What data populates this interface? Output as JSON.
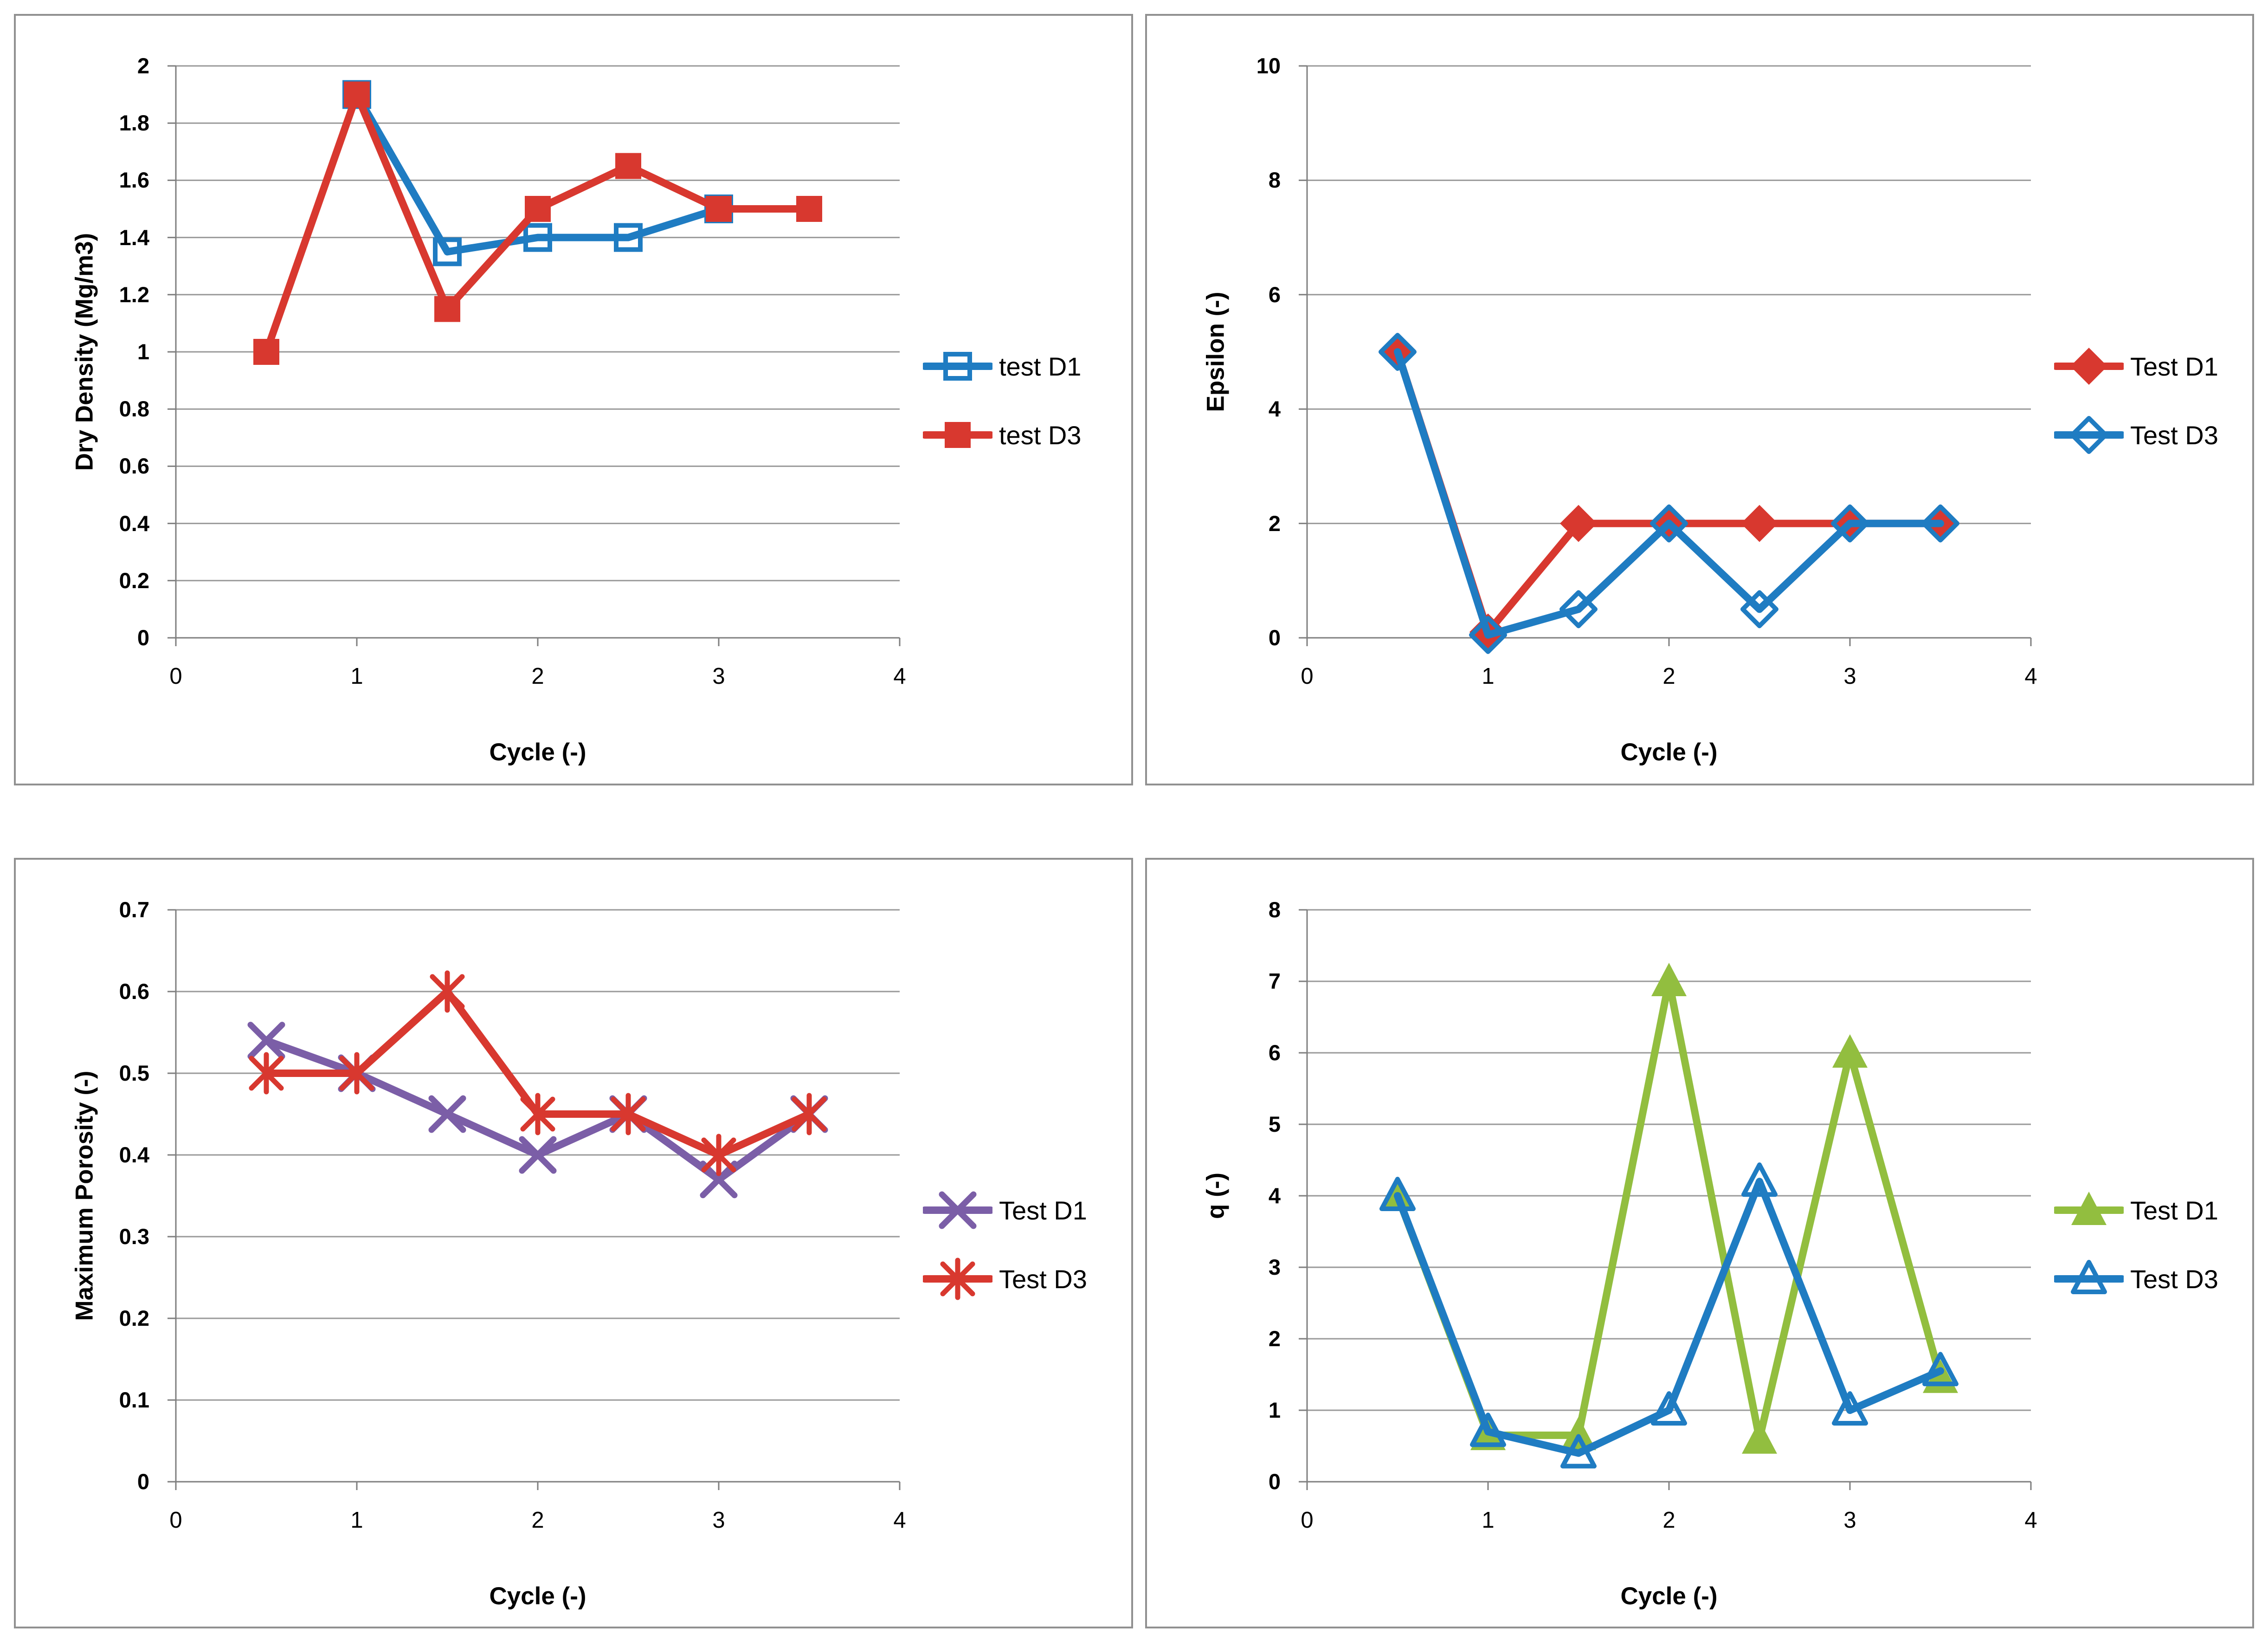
{
  "page": {
    "background": "#ffffff",
    "panel_border_color": "#909090",
    "gridline_color": "#9a9a9a"
  },
  "chart_data": [
    {
      "id": "dry-density",
      "type": "line",
      "title": "",
      "xlabel": "Cycle (-)",
      "ylabel": "Dry Density (Mg/m3)",
      "xlim": [
        0,
        4
      ],
      "ylim": [
        0,
        2
      ],
      "xtick_values": [
        0,
        1,
        2,
        3,
        4
      ],
      "xtick_labels": [
        "0",
        "1",
        "2",
        "3",
        "4"
      ],
      "ytick_values": [
        0,
        0.2,
        0.4,
        0.6,
        0.8,
        1,
        1.2,
        1.4,
        1.6,
        1.8,
        2
      ],
      "ytick_labels": [
        "0",
        "0.2",
        "0.4",
        "0.6",
        "0.8",
        "1",
        "1.2",
        "1.4",
        "1.6",
        "1.8",
        "2"
      ],
      "grid": "horizontal",
      "legend_position": "right",
      "series": [
        {
          "name": "test D1",
          "color": "#1f7cc2",
          "marker": "square-open",
          "x": [
            1,
            1.5,
            2,
            2.5,
            3
          ],
          "y": [
            1.9,
            1.35,
            1.4,
            1.4,
            1.5
          ]
        },
        {
          "name": "test D3",
          "color": "#d8382f",
          "marker": "square-filled",
          "x": [
            0.5,
            1,
            1.5,
            2,
            2.5,
            3,
            3.5
          ],
          "y": [
            1.0,
            1.9,
            1.15,
            1.5,
            1.65,
            1.5,
            1.5
          ]
        }
      ]
    },
    {
      "id": "epsilon",
      "type": "line",
      "title": "",
      "xlabel": "Cycle (-)",
      "ylabel": "Epsilon (-)",
      "xlim": [
        0,
        4
      ],
      "ylim": [
        0,
        10
      ],
      "xtick_values": [
        0,
        1,
        2,
        3,
        4
      ],
      "xtick_labels": [
        "0",
        "1",
        "2",
        "3",
        "4"
      ],
      "ytick_values": [
        0,
        2,
        4,
        6,
        8,
        10
      ],
      "ytick_labels": [
        "0",
        "2",
        "4",
        "6",
        "8",
        "10"
      ],
      "grid": "horizontal",
      "legend_position": "right",
      "series": [
        {
          "name": "Test D1",
          "color": "#d8382f",
          "marker": "diamond-filled",
          "x": [
            0.5,
            1,
            1.5,
            2,
            2.5,
            3,
            3.5
          ],
          "y": [
            5,
            0.1,
            2,
            2,
            2,
            2,
            2
          ]
        },
        {
          "name": "Test D3",
          "color": "#1f7cc2",
          "marker": "diamond-open",
          "x": [
            0.5,
            1,
            1.5,
            2,
            2.5,
            3,
            3.5
          ],
          "y": [
            5,
            0.05,
            0.5,
            2,
            0.5,
            2,
            2
          ]
        }
      ]
    },
    {
      "id": "maximum-porosity",
      "type": "line",
      "title": "",
      "xlabel": "Cycle (-)",
      "ylabel": "Maximum Porosity (-)",
      "xlim": [
        0,
        4
      ],
      "ylim": [
        0,
        0.7
      ],
      "xtick_values": [
        0,
        1,
        2,
        3,
        4
      ],
      "xtick_labels": [
        "0",
        "1",
        "2",
        "3",
        "4"
      ],
      "ytick_values": [
        0,
        0.1,
        0.2,
        0.3,
        0.4,
        0.5,
        0.6,
        0.7
      ],
      "ytick_labels": [
        "0",
        "0.1",
        "0.2",
        "0.3",
        "0.4",
        "0.5",
        "0.6",
        "0.7"
      ],
      "grid": "horizontal",
      "legend_position": "right",
      "series": [
        {
          "name": "Test D1",
          "color": "#7b5ea7",
          "marker": "x",
          "x": [
            0.5,
            1,
            1.5,
            2,
            2.5,
            3,
            3.5
          ],
          "y": [
            0.54,
            0.5,
            0.45,
            0.4,
            0.45,
            0.37,
            0.45
          ]
        },
        {
          "name": "Test D3",
          "color": "#d8382f",
          "marker": "asterisk",
          "x": [
            0.5,
            1,
            1.5,
            2,
            2.5,
            3,
            3.5
          ],
          "y": [
            0.5,
            0.5,
            0.6,
            0.45,
            0.45,
            0.4,
            0.45
          ]
        }
      ]
    },
    {
      "id": "q",
      "type": "line",
      "title": "",
      "xlabel": "Cycle (-)",
      "ylabel": "q (-)",
      "xlim": [
        0,
        4
      ],
      "ylim": [
        0,
        8
      ],
      "xtick_values": [
        0,
        1,
        2,
        3,
        4
      ],
      "xtick_labels": [
        "0",
        "1",
        "2",
        "3",
        "4"
      ],
      "ytick_values": [
        0,
        1,
        2,
        3,
        4,
        5,
        6,
        7,
        8
      ],
      "ytick_labels": [
        "0",
        "1",
        "2",
        "3",
        "4",
        "5",
        "6",
        "7",
        "8"
      ],
      "grid": "horizontal",
      "legend_position": "right",
      "series": [
        {
          "name": "Test D1",
          "color": "#92be3f",
          "marker": "triangle-filled",
          "x": [
            0.5,
            1,
            1.5,
            2,
            2.5,
            3,
            3.5
          ],
          "y": [
            4,
            0.65,
            0.65,
            7,
            0.6,
            6,
            1.45
          ]
        },
        {
          "name": "Test D3",
          "color": "#1f7cc2",
          "marker": "triangle-open",
          "x": [
            0.5,
            1,
            1.5,
            2,
            2.5,
            3,
            3.5
          ],
          "y": [
            4,
            0.7,
            0.4,
            1,
            4.2,
            1,
            1.55
          ]
        }
      ]
    }
  ]
}
